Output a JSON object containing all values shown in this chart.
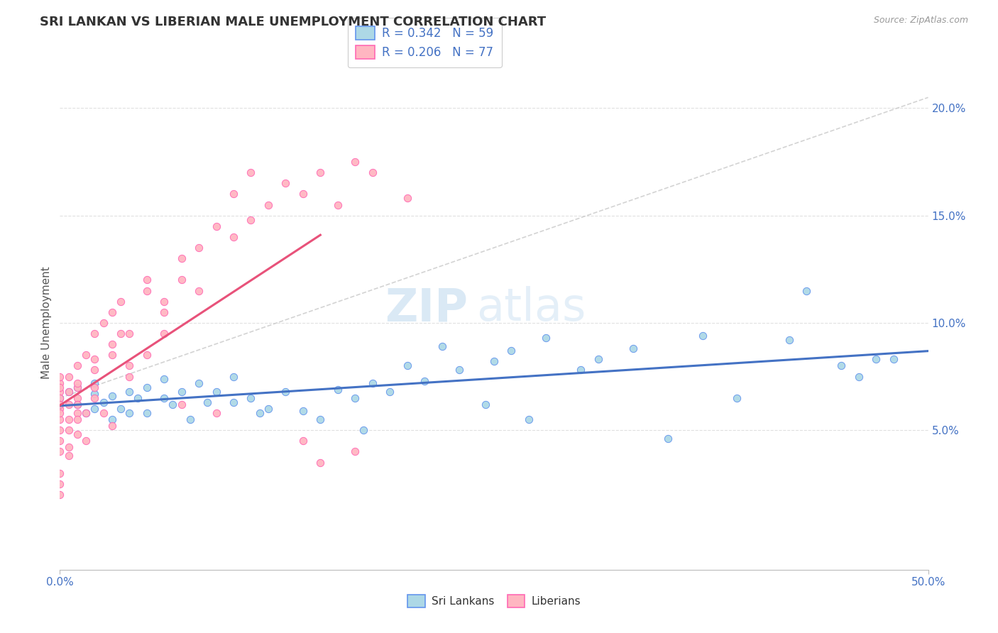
{
  "title": "SRI LANKAN VS LIBERIAN MALE UNEMPLOYMENT CORRELATION CHART",
  "source_text": "Source: ZipAtlas.com",
  "ylabel": "Male Unemployment",
  "xlim": [
    0.0,
    0.5
  ],
  "ylim": [
    -0.015,
    0.215
  ],
  "xtick_positions": [
    0.0,
    0.5
  ],
  "xtick_labels": [
    "0.0%",
    "50.0%"
  ],
  "yticks_right": [
    0.05,
    0.1,
    0.15,
    0.2
  ],
  "ytick_labels_right": [
    "5.0%",
    "10.0%",
    "15.0%",
    "20.0%"
  ],
  "sri_lanka_color": "#ADD8E6",
  "sri_lanka_edge": "#6495ED",
  "liberian_color": "#FFB6C1",
  "liberian_edge": "#FF69B4",
  "sri_lanka_R": 0.342,
  "sri_lanka_N": 59,
  "liberian_R": 0.206,
  "liberian_N": 77,
  "legend_label_1": "Sri Lankans",
  "legend_label_2": "Liberians",
  "trend_color_sl": "#4472C4",
  "trend_color_lb": "#E8527A",
  "ref_line_color": "#CCCCCC",
  "grid_color": "#E0E0E0",
  "watermark": "ZIPatlas",
  "sl_x": [
    0.0,
    0.005,
    0.01,
    0.01,
    0.015,
    0.02,
    0.02,
    0.02,
    0.025,
    0.03,
    0.03,
    0.035,
    0.04,
    0.04,
    0.045,
    0.05,
    0.05,
    0.06,
    0.06,
    0.065,
    0.07,
    0.075,
    0.08,
    0.085,
    0.09,
    0.1,
    0.1,
    0.11,
    0.115,
    0.12,
    0.13,
    0.14,
    0.15,
    0.16,
    0.17,
    0.175,
    0.18,
    0.19,
    0.2,
    0.21,
    0.22,
    0.23,
    0.245,
    0.25,
    0.26,
    0.27,
    0.28,
    0.3,
    0.31,
    0.33,
    0.35,
    0.37,
    0.39,
    0.42,
    0.43,
    0.45,
    0.46,
    0.47,
    0.48
  ],
  "sl_y": [
    0.065,
    0.068,
    0.062,
    0.07,
    0.058,
    0.067,
    0.06,
    0.072,
    0.063,
    0.066,
    0.055,
    0.06,
    0.068,
    0.058,
    0.065,
    0.07,
    0.058,
    0.065,
    0.074,
    0.062,
    0.068,
    0.055,
    0.072,
    0.063,
    0.068,
    0.075,
    0.063,
    0.065,
    0.058,
    0.06,
    0.068,
    0.059,
    0.055,
    0.069,
    0.065,
    0.05,
    0.072,
    0.068,
    0.08,
    0.073,
    0.089,
    0.078,
    0.062,
    0.082,
    0.087,
    0.055,
    0.093,
    0.078,
    0.083,
    0.088,
    0.046,
    0.094,
    0.065,
    0.092,
    0.115,
    0.08,
    0.075,
    0.083,
    0.083
  ],
  "lb_x": [
    0.0,
    0.0,
    0.0,
    0.0,
    0.0,
    0.0,
    0.0,
    0.0,
    0.0,
    0.0,
    0.0,
    0.0,
    0.0,
    0.0,
    0.0,
    0.005,
    0.005,
    0.005,
    0.005,
    0.005,
    0.005,
    0.005,
    0.01,
    0.01,
    0.01,
    0.01,
    0.01,
    0.01,
    0.01,
    0.01,
    0.015,
    0.015,
    0.015,
    0.02,
    0.02,
    0.02,
    0.02,
    0.02,
    0.025,
    0.025,
    0.03,
    0.03,
    0.03,
    0.03,
    0.035,
    0.035,
    0.04,
    0.04,
    0.04,
    0.05,
    0.05,
    0.05,
    0.06,
    0.06,
    0.06,
    0.07,
    0.07,
    0.07,
    0.08,
    0.08,
    0.09,
    0.09,
    0.1,
    0.1,
    0.11,
    0.11,
    0.12,
    0.13,
    0.14,
    0.14,
    0.15,
    0.15,
    0.16,
    0.17,
    0.17,
    0.18,
    0.2
  ],
  "lb_y": [
    0.068,
    0.072,
    0.065,
    0.06,
    0.055,
    0.07,
    0.058,
    0.062,
    0.04,
    0.045,
    0.05,
    0.075,
    0.02,
    0.025,
    0.03,
    0.068,
    0.075,
    0.055,
    0.062,
    0.05,
    0.042,
    0.038,
    0.065,
    0.058,
    0.07,
    0.08,
    0.055,
    0.048,
    0.062,
    0.072,
    0.085,
    0.058,
    0.045,
    0.078,
    0.083,
    0.07,
    0.065,
    0.095,
    0.1,
    0.058,
    0.09,
    0.085,
    0.105,
    0.052,
    0.095,
    0.11,
    0.075,
    0.08,
    0.095,
    0.115,
    0.12,
    0.085,
    0.095,
    0.11,
    0.105,
    0.12,
    0.13,
    0.062,
    0.115,
    0.135,
    0.145,
    0.058,
    0.14,
    0.16,
    0.148,
    0.17,
    0.155,
    0.165,
    0.16,
    0.045,
    0.17,
    0.035,
    0.155,
    0.175,
    0.04,
    0.17,
    0.158
  ],
  "ref_line_x": [
    0.0,
    0.5
  ],
  "ref_line_y": [
    0.065,
    0.205
  ]
}
